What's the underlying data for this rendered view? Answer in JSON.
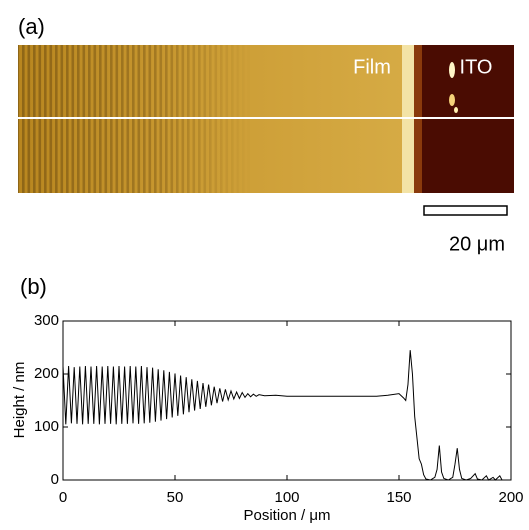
{
  "image": {
    "label": "(a)",
    "region_labels": [
      "Film",
      "ITO"
    ],
    "scale_bar": "20 μm"
  },
  "chart_data": {
    "type": "line",
    "label": "(b)",
    "x_label": "Position / μm",
    "y_label": "Height / nm",
    "color": "#000000",
    "xlim": [
      0,
      200
    ],
    "xticks": [
      0,
      50,
      100,
      150,
      200
    ],
    "ylim": [
      0,
      300
    ],
    "yticks": [
      0,
      100,
      200,
      300
    ],
    "x": [
      0,
      1.25,
      2.5,
      3.75,
      5,
      6.25,
      7.5,
      8.75,
      10,
      11.25,
      12.5,
      13.75,
      15,
      16.25,
      17.5,
      18.75,
      20,
      21.25,
      22.5,
      23.75,
      25,
      26.25,
      27.5,
      28.75,
      30,
      31.25,
      32.5,
      33.75,
      35,
      36.25,
      37.5,
      38.75,
      40,
      41.25,
      42.5,
      43.75,
      45,
      46.25,
      47.5,
      48.75,
      50,
      51.25,
      52.5,
      53.75,
      55,
      56.25,
      57.5,
      58.75,
      60,
      61.25,
      62.5,
      63.75,
      65,
      66.25,
      67.5,
      68.75,
      70,
      71.25,
      72.5,
      73.75,
      75,
      76.25,
      77.5,
      78.75,
      80,
      81.25,
      82.5,
      83.75,
      85,
      86.25,
      87.5,
      90,
      95,
      100,
      110,
      120,
      130,
      140,
      145,
      150,
      152,
      153,
      154,
      155,
      156,
      157,
      158,
      159,
      160,
      161,
      162,
      164,
      166,
      167,
      168,
      169,
      170,
      172,
      174,
      175,
      176,
      177,
      178,
      180,
      182,
      184,
      185,
      187,
      189,
      190,
      192,
      193,
      195,
      196
    ],
    "values": [
      215,
      105,
      215,
      107,
      213,
      106,
      214,
      105,
      215,
      106,
      214,
      106,
      215,
      105,
      214,
      106,
      215,
      106,
      214,
      105,
      215,
      106,
      214,
      106,
      215,
      107,
      214,
      106,
      215,
      107,
      213,
      108,
      212,
      110,
      209,
      112,
      207,
      115,
      204,
      118,
      201,
      121,
      197,
      124,
      194,
      128,
      190,
      131,
      187,
      134,
      183,
      138,
      180,
      141,
      176,
      145,
      173,
      148,
      171,
      151,
      168,
      153,
      166,
      154,
      165,
      156,
      163,
      157,
      162,
      158,
      161,
      159,
      160,
      158,
      158,
      158,
      158,
      158,
      160,
      163,
      155,
      150,
      180,
      245,
      200,
      120,
      80,
      40,
      30,
      10,
      2,
      0,
      5,
      20,
      65,
      15,
      3,
      0,
      5,
      30,
      60,
      20,
      3,
      0,
      3,
      12,
      2,
      0,
      8,
      0,
      5,
      0,
      8,
      0
    ]
  }
}
